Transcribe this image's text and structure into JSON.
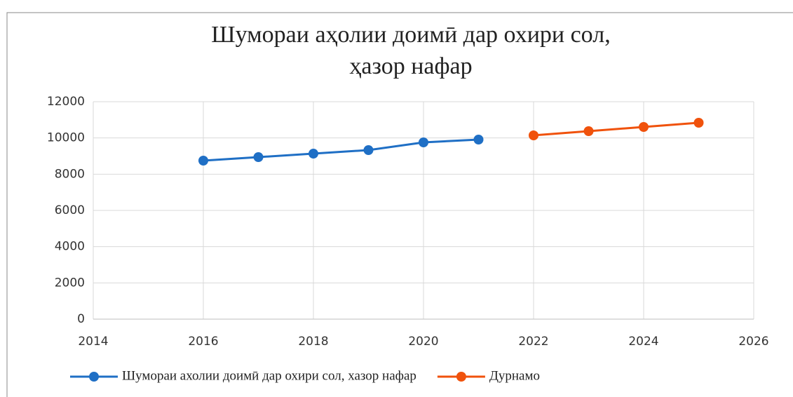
{
  "chart_data": {
    "type": "line",
    "title": [
      "Шумораи аҳолии доимӣ дар охири сол,",
      "ҳазор нафар"
    ],
    "series": [
      {
        "name": "Шумораи ахолии доимӣ дар охири сол, хазор нафар",
        "color": "#1f6fc5",
        "x": [
          2016,
          2017,
          2018,
          2019,
          2020,
          2021
        ],
        "values": [
          8748,
          8942,
          9135,
          9329,
          9755,
          9910
        ]
      },
      {
        "name": "Дурнамо",
        "color": "#f0520c",
        "x": [
          2022,
          2023,
          2024,
          2025
        ],
        "values": [
          10142,
          10374,
          10606,
          10839
        ]
      }
    ],
    "xlim": [
      2014,
      2026
    ],
    "xticks": [
      2014,
      2016,
      2018,
      2020,
      2022,
      2024,
      2026
    ],
    "ylim": [
      0,
      12000
    ],
    "yticks": [
      0,
      2000,
      4000,
      6000,
      8000,
      10000,
      12000
    ],
    "grid": true,
    "legend": "bottom"
  }
}
